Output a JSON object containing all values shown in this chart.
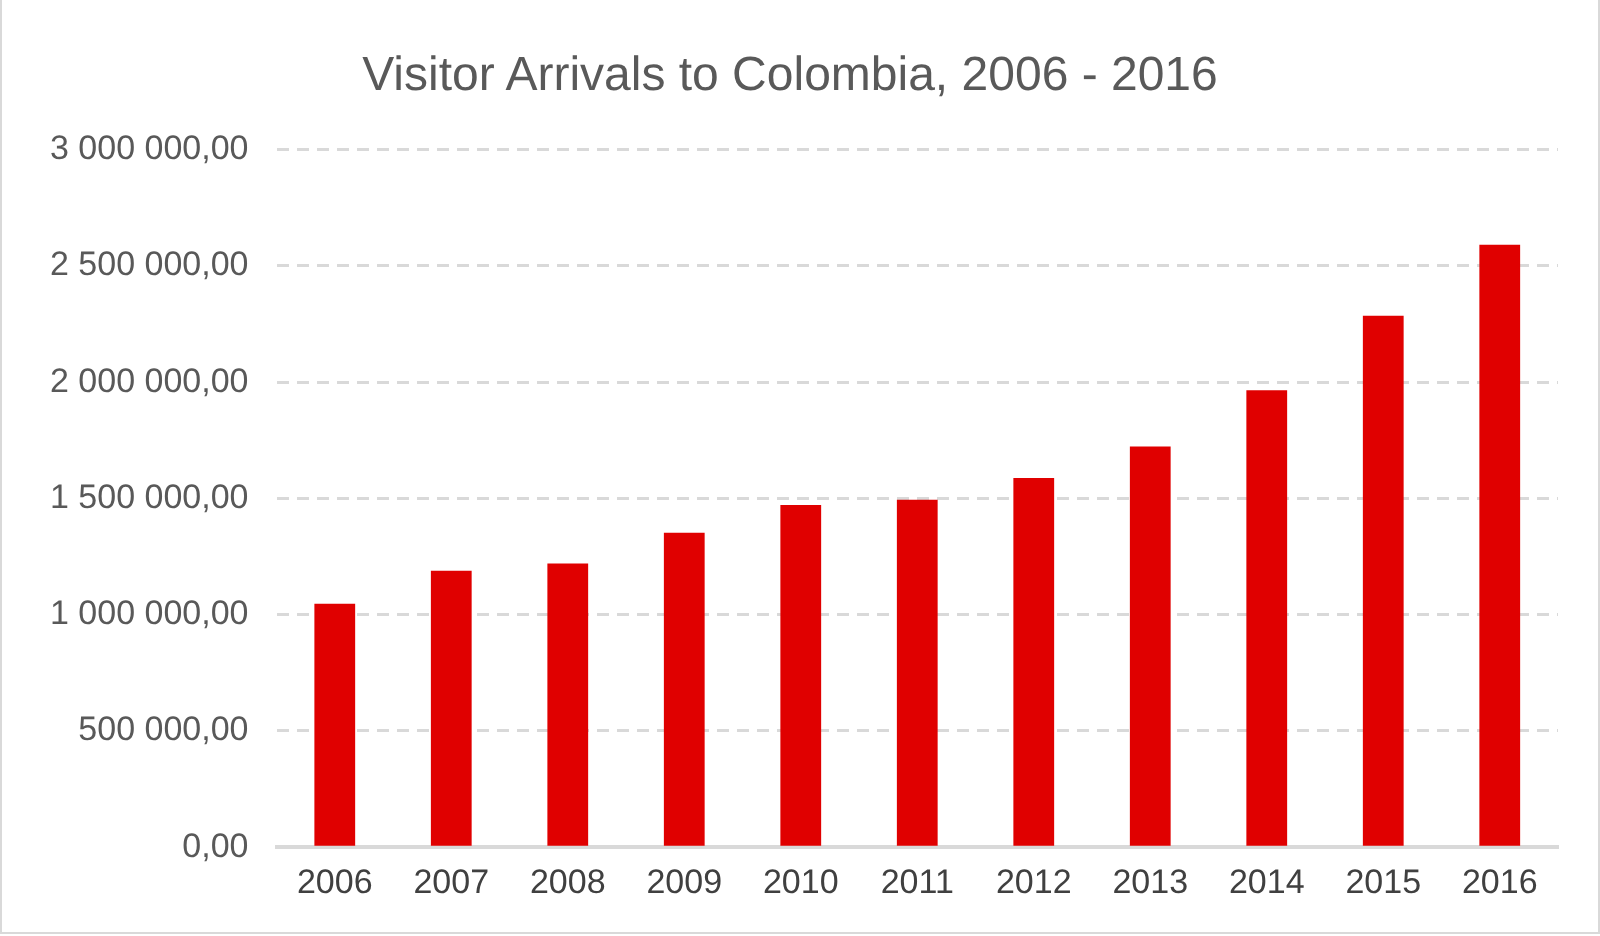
{
  "chart_data": {
    "type": "bar",
    "title": "Visitor Arrivals to Colombia, 2006 - 2016",
    "categories": [
      "2006",
      "2007",
      "2008",
      "2009",
      "2010",
      "2011",
      "2012",
      "2013",
      "2014",
      "2015",
      "2016"
    ],
    "values": [
      1047000,
      1189000,
      1220000,
      1352000,
      1472000,
      1494000,
      1588000,
      1723000,
      1965000,
      2286000,
      2591000
    ],
    "color": "#e00000",
    "ylim": [
      0,
      3000000
    ],
    "yticks": [
      {
        "value": 0,
        "label": "0,00"
      },
      {
        "value": 500000,
        "label": "500 000,00"
      },
      {
        "value": 1000000,
        "label": "1 000 000,00"
      },
      {
        "value": 1500000,
        "label": "1 500 000,00"
      },
      {
        "value": 2000000,
        "label": "2 000 000,00"
      },
      {
        "value": 2500000,
        "label": "2 500 000,00"
      },
      {
        "value": 3000000,
        "label": "3 000 000,00"
      }
    ],
    "grid": "y",
    "legend": false
  }
}
